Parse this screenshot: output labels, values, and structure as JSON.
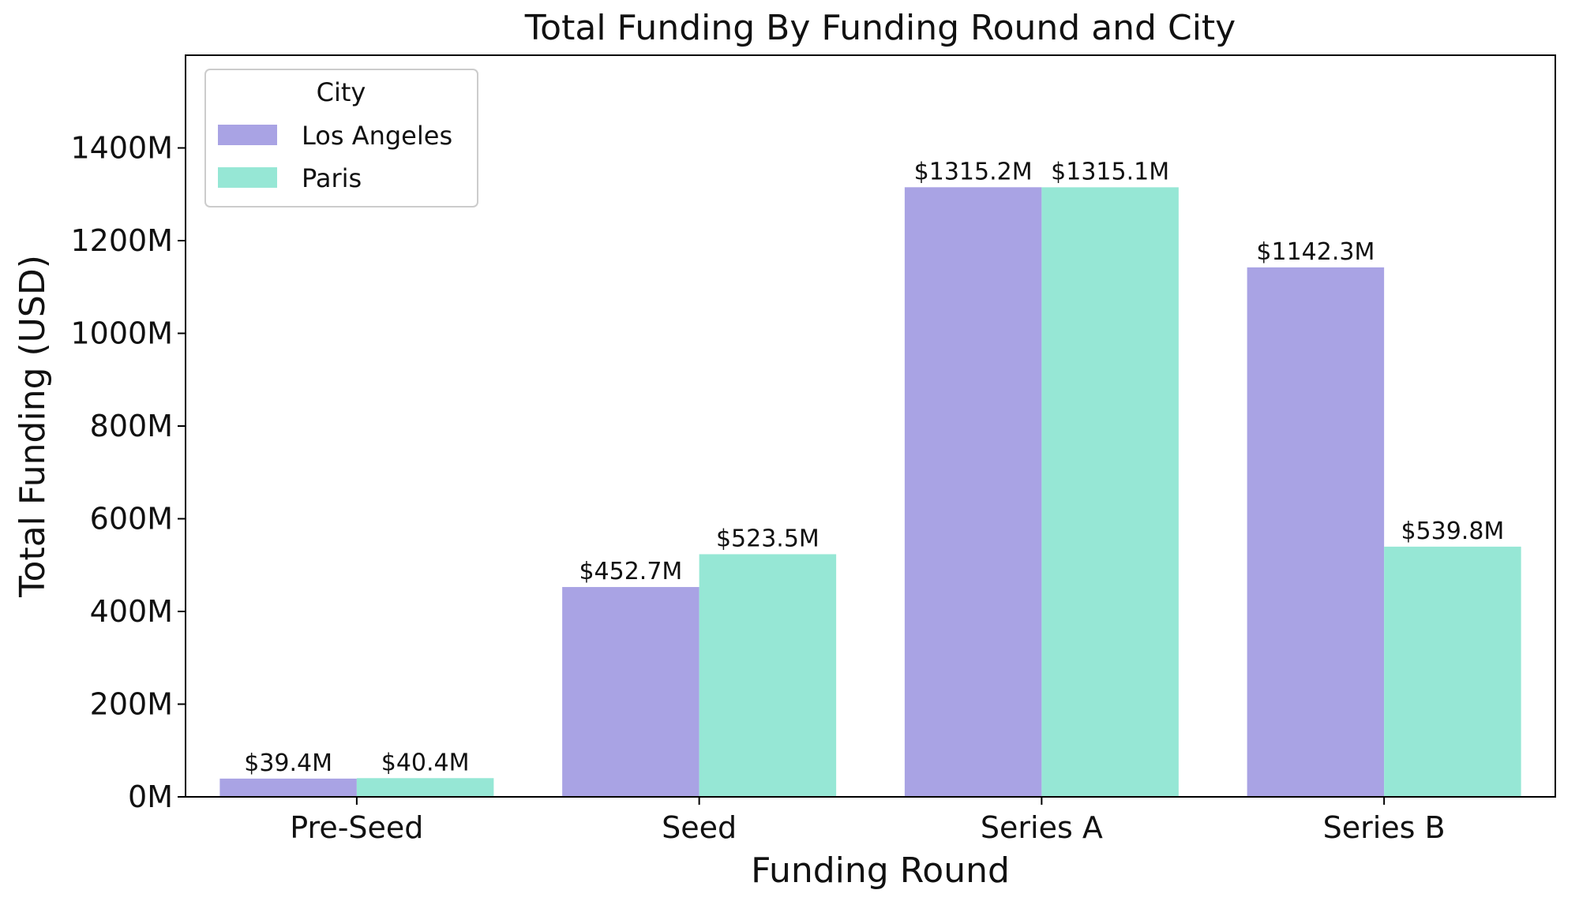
{
  "chart_data": {
    "type": "bar",
    "title": "Total Funding By Funding Round and City",
    "xlabel": "Funding Round",
    "ylabel": "Total Funding (USD)",
    "categories": [
      "Pre-Seed",
      "Seed",
      "Series A",
      "Series B"
    ],
    "series": [
      {
        "name": "Los Angeles",
        "color": "#a9a3e4",
        "values": [
          39.4,
          452.7,
          1315.2,
          1142.3
        ],
        "labels": [
          "$39.4M",
          "$452.7M",
          "$1315.2M",
          "$1142.3M"
        ]
      },
      {
        "name": "Paris",
        "color": "#96e7d5",
        "values": [
          40.4,
          523.5,
          1315.1,
          539.8
        ],
        "labels": [
          "$40.4M",
          "$523.5M",
          "$1315.1M",
          "$539.8M"
        ]
      }
    ],
    "ylim": [
      0,
      1600
    ],
    "yticks": [
      0,
      200,
      400,
      600,
      800,
      1000,
      1200,
      1400
    ],
    "ytick_labels": [
      "0M",
      "200M",
      "400M",
      "600M",
      "800M",
      "1000M",
      "1200M",
      "1400M"
    ],
    "legend": {
      "title": "City",
      "position": "top-left"
    },
    "grid": false
  }
}
